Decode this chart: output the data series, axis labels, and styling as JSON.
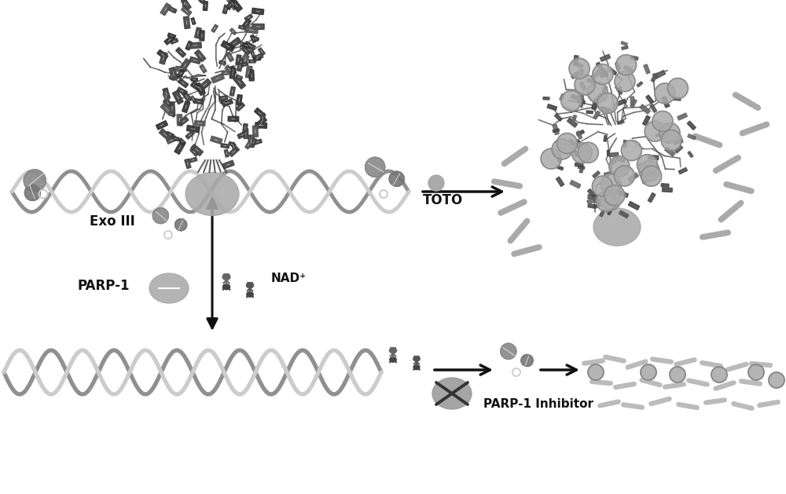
{
  "bg_color": "#ffffff",
  "arrow_color": "#111111",
  "text_color": "#111111",
  "parp_label": "PARP-1",
  "exo_label": "Exo III",
  "nad_label": "NAD⁺",
  "toto_label": "TOTO",
  "inhibitor_label": "PARP-1 Inhibitor",
  "fig_width": 10.0,
  "fig_height": 6.29,
  "dna_color1": "#c0c0c0",
  "dna_color2": "#909090",
  "par_dark": "#444444",
  "par_mid": "#666666",
  "par_light": "#888888",
  "ellipse_color": "#aaaaaa",
  "toto_circle_color": "#aaaaaa",
  "dash_color": "#aaaaaa",
  "leaf_color": "#888888"
}
